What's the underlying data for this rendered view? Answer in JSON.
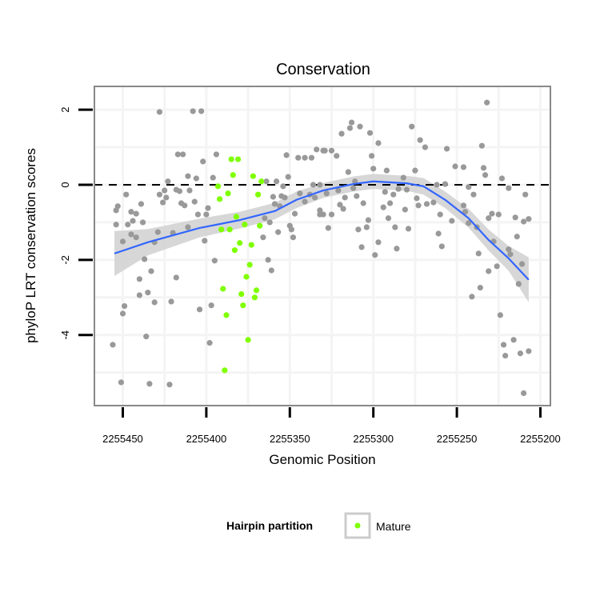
{
  "chart_data": {
    "type": "scatter",
    "title": "Conservation",
    "xlabel": "Genomic Position",
    "ylabel": "phyloP LRT conservation scores",
    "xlim": [
      2255467,
      2255194
    ],
    "x_reversed": true,
    "ylim": [
      -5.88,
      2.62
    ],
    "x_ticks": [
      2255450,
      2255400,
      2255350,
      2255300,
      2255250,
      2255200
    ],
    "x_tick_labels": [
      "2255450",
      "2255400",
      "2255350",
      "2255300",
      "2255250",
      "2255200"
    ],
    "y_ticks": [
      2,
      0,
      -2,
      -4
    ],
    "y_tick_labels": [
      "2",
      "0",
      "-2",
      "-4"
    ],
    "grid": true,
    "reference_line": {
      "y": 0,
      "style": "dashed",
      "color": "#000000"
    },
    "legend": {
      "title": "Hairpin partition",
      "placement": "bottom",
      "entries": [
        {
          "label": "Mature",
          "color": "#7FFF00"
        }
      ]
    },
    "colors": {
      "other": "#999999",
      "mature": "#7FFF00",
      "smooth": "#3366FF",
      "band": "#D3D3D3"
    },
    "series": [
      {
        "name": "Other",
        "points": [
          [
            2255428,
            1.94
          ],
          [
            2255408,
            1.96
          ],
          [
            2255403,
            1.96
          ],
          [
            2255417,
            0.81
          ],
          [
            2255414,
            0.81
          ],
          [
            2255402,
            0.62
          ],
          [
            2255394,
            0.81
          ],
          [
            2255411,
            0.23
          ],
          [
            2255406,
            0.17
          ],
          [
            2255396,
            0.19
          ],
          [
            2255423,
            0.09
          ],
          [
            2255448,
            -0.26
          ],
          [
            2255428,
            -0.26
          ],
          [
            2255425,
            -0.15
          ],
          [
            2255424,
            -0.34
          ],
          [
            2255426,
            -0.47
          ],
          [
            2255418,
            -0.13
          ],
          [
            2255416,
            -0.17
          ],
          [
            2255410,
            -0.15
          ],
          [
            2255415,
            -0.49
          ],
          [
            2255413,
            -0.55
          ],
          [
            2255407,
            -0.45
          ],
          [
            2255439,
            -0.51
          ],
          [
            2255453,
            -0.57
          ],
          [
            2255454,
            -0.68
          ],
          [
            2255445,
            -0.72
          ],
          [
            2255442,
            -0.77
          ],
          [
            2255405,
            -0.79
          ],
          [
            2255400,
            -0.79
          ],
          [
            2255399,
            -0.62
          ],
          [
            2255454,
            -1.06
          ],
          [
            2255447,
            -1.06
          ],
          [
            2255444,
            -0.96
          ],
          [
            2255438,
            -1.0
          ],
          [
            2255445,
            -1.32
          ],
          [
            2255442,
            -1.4
          ],
          [
            2255450,
            -1.51
          ],
          [
            2255429,
            -1.26
          ],
          [
            2255431,
            -1.53
          ],
          [
            2255420,
            -1.28
          ],
          [
            2255411,
            -1.13
          ],
          [
            2255401,
            -1.49
          ],
          [
            2255437,
            -1.98
          ],
          [
            2255433,
            -2.3
          ],
          [
            2255440,
            -2.51
          ],
          [
            2255418,
            -2.47
          ],
          [
            2255395,
            -2.02
          ],
          [
            2255435,
            -2.87
          ],
          [
            2255440,
            -2.94
          ],
          [
            2255449,
            -3.23
          ],
          [
            2255450,
            -3.43
          ],
          [
            2255431,
            -3.13
          ],
          [
            2255421,
            -3.11
          ],
          [
            2255404,
            -3.32
          ],
          [
            2255397,
            -3.21
          ],
          [
            2255436,
            -4.04
          ],
          [
            2255456,
            -4.26
          ],
          [
            2255398,
            -4.21
          ],
          [
            2255451,
            -5.26
          ],
          [
            2255434,
            -5.3
          ],
          [
            2255422,
            -5.32
          ],
          [
            2255352,
            0.79
          ],
          [
            2255345,
            0.72
          ],
          [
            2255341,
            0.72
          ],
          [
            2255337,
            0.72
          ],
          [
            2255334,
            0.94
          ],
          [
            2255330,
            0.91
          ],
          [
            2255351,
            0.21
          ],
          [
            2255364,
            0.09
          ],
          [
            2255358,
            0.09
          ],
          [
            2255354,
            -0.04
          ],
          [
            2255336,
            0.0
          ],
          [
            2255332,
            0.0
          ],
          [
            2255360,
            -0.32
          ],
          [
            2255355,
            -0.3
          ],
          [
            2255353,
            -0.34
          ],
          [
            2255344,
            -0.23
          ],
          [
            2255338,
            -0.26
          ],
          [
            2255335,
            -0.34
          ],
          [
            2255359,
            -0.51
          ],
          [
            2255356,
            -0.57
          ],
          [
            2255341,
            -0.45
          ],
          [
            2255347,
            -0.77
          ],
          [
            2255332,
            -0.68
          ],
          [
            2255332,
            -0.79
          ],
          [
            2255365,
            -0.89
          ],
          [
            2255362,
            -1.0
          ],
          [
            2255357,
            -1.26
          ],
          [
            2255350,
            -1.09
          ],
          [
            2255349,
            -1.19
          ],
          [
            2255348,
            -1.4
          ],
          [
            2255366,
            -1.4
          ],
          [
            2255363,
            -2.0
          ],
          [
            2255361,
            -2.28
          ],
          [
            2255232,
            2.19
          ],
          [
            2255313,
            1.66
          ],
          [
            2255314,
            1.51
          ],
          [
            2255308,
            1.55
          ],
          [
            2255319,
            1.36
          ],
          [
            2255302,
            1.38
          ],
          [
            2255277,
            1.55
          ],
          [
            2255297,
            1.11
          ],
          [
            2255272,
            1.19
          ],
          [
            2255269,
            1.0
          ],
          [
            2255256,
            0.96
          ],
          [
            2255235,
            1.04
          ],
          [
            2255329,
            0.91
          ],
          [
            2255325,
            0.91
          ],
          [
            2255322,
            0.77
          ],
          [
            2255301,
            0.77
          ],
          [
            2255251,
            0.49
          ],
          [
            2255246,
            0.47
          ],
          [
            2255234,
            0.45
          ],
          [
            2255233,
            0.26
          ],
          [
            2255223,
            0.17
          ],
          [
            2255219,
            -0.09
          ],
          [
            2255209,
            -0.26
          ],
          [
            2255315,
            0.34
          ],
          [
            2255300,
            0.43
          ],
          [
            2255292,
            0.38
          ],
          [
            2255275,
            0.38
          ],
          [
            2255282,
            0.19
          ],
          [
            2255311,
            0.09
          ],
          [
            2255312,
            -0.09
          ],
          [
            2255328,
            -0.23
          ],
          [
            2255321,
            -0.15
          ],
          [
            2255317,
            -0.34
          ],
          [
            2255320,
            -0.53
          ],
          [
            2255318,
            -0.64
          ],
          [
            2255310,
            -0.3
          ],
          [
            2255306,
            -0.49
          ],
          [
            2255293,
            -0.19
          ],
          [
            2255288,
            -0.26
          ],
          [
            2255285,
            -0.11
          ],
          [
            2255280,
            -0.13
          ],
          [
            2255294,
            -0.6
          ],
          [
            2255290,
            -0.49
          ],
          [
            2255281,
            -0.66
          ],
          [
            2255291,
            -0.89
          ],
          [
            2255287,
            -1.13
          ],
          [
            2255279,
            -1.17
          ],
          [
            2255303,
            -0.94
          ],
          [
            2255304,
            -1.13
          ],
          [
            2255309,
            -1.19
          ],
          [
            2255330,
            -0.79
          ],
          [
            2255325,
            -0.79
          ],
          [
            2255327,
            -1.15
          ],
          [
            2255307,
            -1.66
          ],
          [
            2255297,
            -1.53
          ],
          [
            2255299,
            -1.87
          ],
          [
            2255286,
            -1.7
          ],
          [
            2255274,
            -0.36
          ],
          [
            2255273,
            -0.55
          ],
          [
            2255268,
            -0.51
          ],
          [
            2255264,
            -0.47
          ],
          [
            2255262,
            0.0
          ],
          [
            2255257,
            0.02
          ],
          [
            2255243,
            -0.06
          ],
          [
            2255240,
            -0.26
          ],
          [
            2255260,
            -0.79
          ],
          [
            2255253,
            -0.96
          ],
          [
            2255261,
            -1.3
          ],
          [
            2255259,
            -1.64
          ],
          [
            2255246,
            -0.55
          ],
          [
            2255245,
            -0.72
          ],
          [
            2255243,
            -1.02
          ],
          [
            2255238,
            -1.13
          ],
          [
            2255231,
            -0.89
          ],
          [
            2255229,
            -0.77
          ],
          [
            2255225,
            -0.79
          ],
          [
            2255215,
            -0.87
          ],
          [
            2255214,
            -1.38
          ],
          [
            2255207,
            -0.91
          ],
          [
            2255210,
            -0.98
          ],
          [
            2255228,
            -1.51
          ],
          [
            2255219,
            -1.72
          ],
          [
            2255218,
            -1.85
          ],
          [
            2255211,
            -2.11
          ],
          [
            2255231,
            -2.3
          ],
          [
            2255226,
            -2.17
          ],
          [
            2255237,
            -1.83
          ],
          [
            2255213,
            -2.64
          ],
          [
            2255236,
            -2.74
          ],
          [
            2255241,
            -2.98
          ],
          [
            2255224,
            -3.47
          ],
          [
            2255222,
            -4.26
          ],
          [
            2255216,
            -4.13
          ],
          [
            2255221,
            -4.55
          ],
          [
            2255212,
            -4.49
          ],
          [
            2255207,
            -4.43
          ],
          [
            2255210,
            -5.55
          ]
        ]
      },
      {
        "name": "Mature",
        "points": [
          [
            2255385,
            0.68
          ],
          [
            2255381,
            0.68
          ],
          [
            2255384,
            0.26
          ],
          [
            2255372,
            0.23
          ],
          [
            2255367,
            0.09
          ],
          [
            2255393,
            -0.04
          ],
          [
            2255392,
            -0.38
          ],
          [
            2255387,
            -0.23
          ],
          [
            2255369,
            -0.26
          ],
          [
            2255382,
            -0.85
          ],
          [
            2255377,
            -1.06
          ],
          [
            2255368,
            -1.09
          ],
          [
            2255391,
            -1.19
          ],
          [
            2255386,
            -1.19
          ],
          [
            2255380,
            -1.55
          ],
          [
            2255373,
            -1.6
          ],
          [
            2255383,
            -1.74
          ],
          [
            2255374,
            -2.13
          ],
          [
            2255376,
            -2.45
          ],
          [
            2255390,
            -2.77
          ],
          [
            2255379,
            -2.91
          ],
          [
            2255370,
            -2.81
          ],
          [
            2255371,
            -3.0
          ],
          [
            2255378,
            -3.21
          ],
          [
            2255388,
            -3.47
          ],
          [
            2255375,
            -4.13
          ],
          [
            2255389,
            -4.94
          ]
        ]
      }
    ],
    "smooth": {
      "method": "loess",
      "x": [
        2255455,
        2255435,
        2255404,
        2255380,
        2255359,
        2255346,
        2255330,
        2255312,
        2255300,
        2255280,
        2255270,
        2255257,
        2255243,
        2255231,
        2255219,
        2255207
      ],
      "y": [
        -1.83,
        -1.53,
        -1.15,
        -0.94,
        -0.7,
        -0.4,
        -0.15,
        0.02,
        0.09,
        0.04,
        -0.04,
        -0.4,
        -0.89,
        -1.47,
        -1.96,
        -2.53
      ],
      "se": [
        0.6,
        0.35,
        0.25,
        0.22,
        0.22,
        0.22,
        0.2,
        0.2,
        0.2,
        0.2,
        0.22,
        0.22,
        0.25,
        0.28,
        0.33,
        0.6
      ]
    }
  }
}
